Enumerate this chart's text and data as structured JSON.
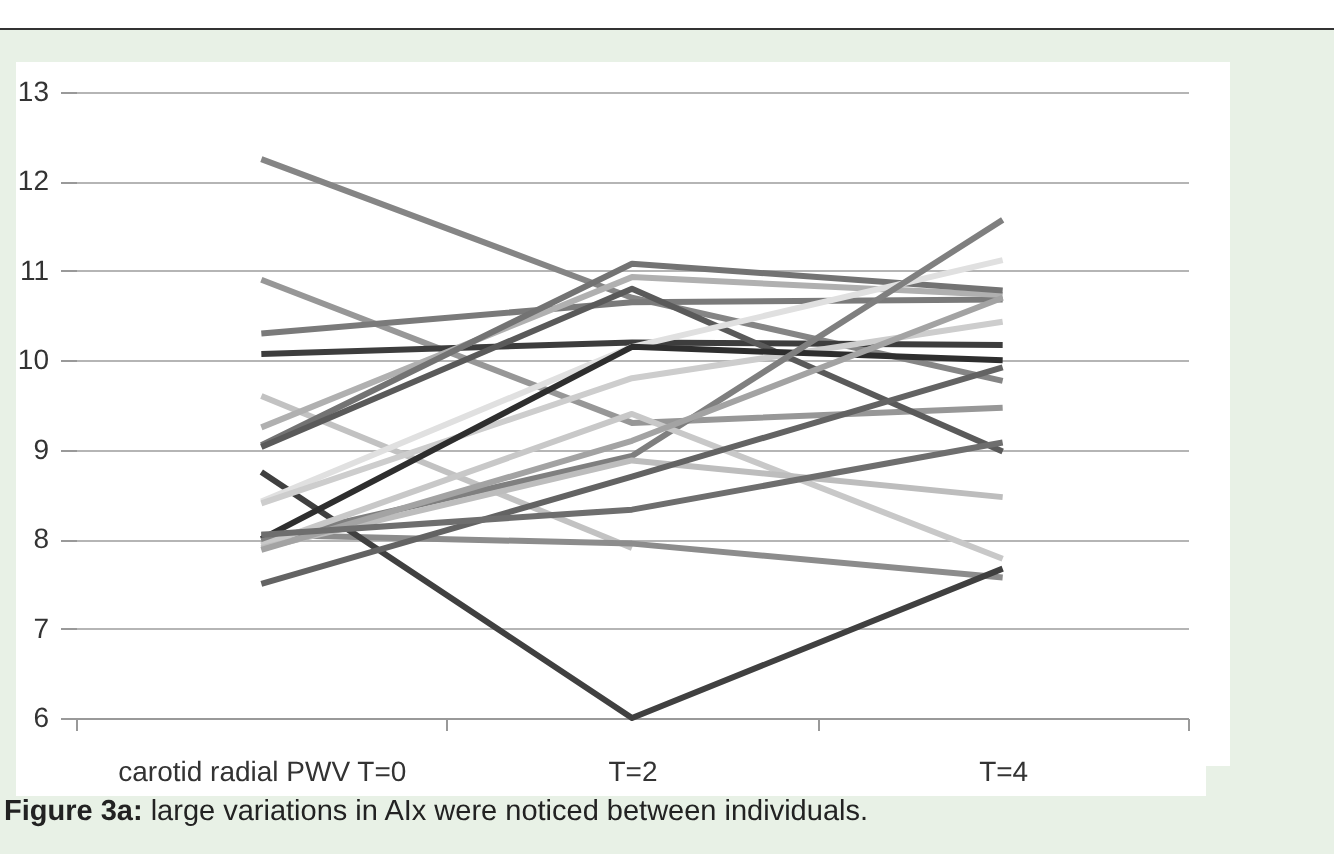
{
  "chart_data": {
    "type": "line",
    "categories": [
      "carotid radial PWV T=0",
      "T=2",
      "T=4"
    ],
    "ylim": [
      6,
      13
    ],
    "yticks": [
      6,
      7,
      8,
      9,
      10,
      11,
      12,
      13
    ],
    "grid": "y",
    "legend": false,
    "marker": "none",
    "line_style": "solid",
    "series": [
      {
        "color": "#858585",
        "values": [
          12.25,
          10.7,
          9.77
        ]
      },
      {
        "color": "#979797",
        "values": [
          10.9,
          9.3,
          9.47
        ]
      },
      {
        "color": "#7a7a7a",
        "values": [
          10.3,
          10.65,
          10.68
        ]
      },
      {
        "color": "#3d3d3d",
        "values": [
          10.07,
          10.2,
          10.17
        ]
      },
      {
        "color": "#c2c2c2",
        "values": [
          9.6,
          7.9,
          null
        ]
      },
      {
        "color": "#b0b0b0",
        "values": [
          9.25,
          10.93,
          10.73
        ]
      },
      {
        "color": "#737373",
        "values": [
          9.05,
          11.08,
          10.78
        ]
      },
      {
        "color": "#5a5a5a",
        "values": [
          9.03,
          10.8,
          8.98
        ]
      },
      {
        "color": "#8c8c8c",
        "values": [
          8.05,
          7.95,
          7.57
        ]
      },
      {
        "color": "#404040",
        "values": [
          8.75,
          6.0,
          7.67
        ]
      },
      {
        "color": "#e0e0e0",
        "values": [
          8.42,
          10.15,
          11.12
        ]
      },
      {
        "color": "#cdcdcd",
        "values": [
          8.4,
          9.8,
          10.43
        ]
      },
      {
        "color": "#2e2e2e",
        "values": [
          8.0,
          10.15,
          10.0
        ]
      },
      {
        "color": "#7f7f7f",
        "values": [
          7.98,
          8.93,
          11.57
        ]
      },
      {
        "color": "#c8c8c8",
        "values": [
          7.93,
          9.4,
          7.78
        ]
      },
      {
        "color": "#bdbdbd",
        "values": [
          7.9,
          8.88,
          8.47
        ]
      },
      {
        "color": "#a3a3a3",
        "values": [
          7.88,
          9.1,
          10.7
        ]
      },
      {
        "color": "#636363",
        "values": [
          7.5,
          8.7,
          9.92
        ]
      },
      {
        "color": "#6e6e6e",
        "values": [
          8.05,
          8.33,
          9.08
        ]
      }
    ],
    "annotations": [
      "Figure 3a: large variations in AIx were noticed between individuals."
    ]
  }
}
